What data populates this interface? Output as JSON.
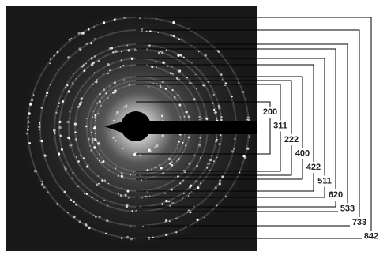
{
  "rings": [
    {
      "label": "200"
    },
    {
      "label": "311"
    },
    {
      "label": "222"
    },
    {
      "label": "400"
    },
    {
      "label": "422"
    },
    {
      "label": "511"
    },
    {
      "label": "620"
    },
    {
      "label": "533"
    },
    {
      "label": "733"
    },
    {
      "label": "842"
    }
  ]
}
